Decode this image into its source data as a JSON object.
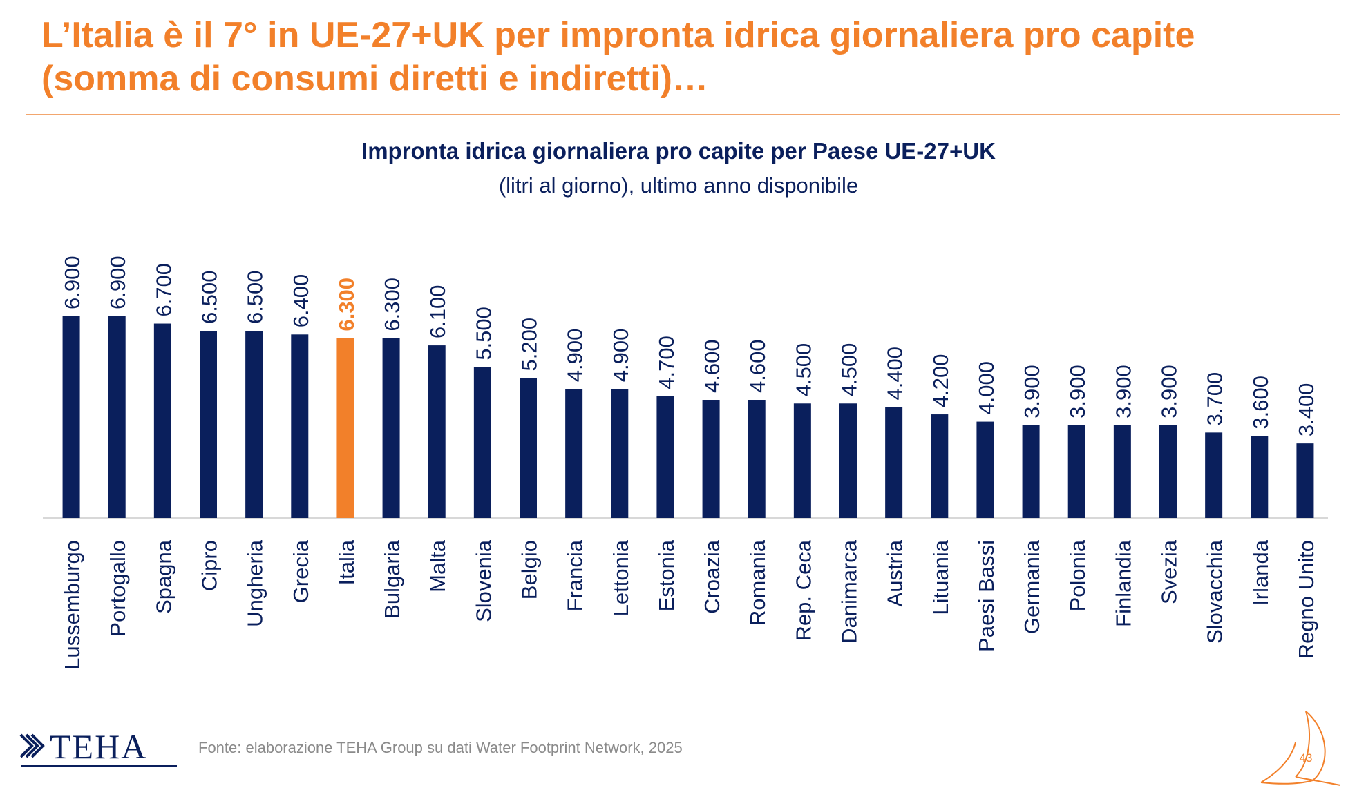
{
  "slide": {
    "title": "L’Italia è il 7° in UE-27+UK per impronta idrica giornaliera pro capite (somma di consumi diretti e indiretti)…",
    "page_number": "43"
  },
  "source": "Fonte: elaborazione TEHA Group su dati Water Footprint Network, 2025",
  "logo": {
    "text": "TEHA",
    "color": "#0A1F5C"
  },
  "colors": {
    "accent": "#F2802A",
    "bar": "#0A1F5C",
    "highlight": "#F2802A"
  },
  "chart_data": {
    "type": "bar",
    "title": "Impronta idrica giornaliera pro capite per Paese UE-27+UK",
    "subtitle": "(litri al giorno), ultimo anno disponibile",
    "categories": [
      "Lussemburgo",
      "Portogallo",
      "Spagna",
      "Cipro",
      "Ungheria",
      "Grecia",
      "Italia",
      "Bulgaria",
      "Malta",
      "Slovenia",
      "Belgio",
      "Francia",
      "Lettonia",
      "Estonia",
      "Croazia",
      "Romania",
      "Rep. Ceca",
      "Danimarca",
      "Austria",
      "Lituania",
      "Paesi Bassi",
      "Germania",
      "Polonia",
      "Finlandia",
      "Svezia",
      "Slovacchia",
      "Irlanda",
      "Regno Unito"
    ],
    "values": [
      6900,
      6900,
      6700,
      6500,
      6500,
      6400,
      6300,
      6300,
      6100,
      5500,
      5200,
      4900,
      4900,
      4700,
      4600,
      4600,
      4500,
      4500,
      4400,
      4200,
      4000,
      3900,
      3900,
      3900,
      3900,
      3700,
      3600,
      3400
    ],
    "value_labels": [
      "6.900",
      "6.900",
      "6.700",
      "6.500",
      "6.500",
      "6.400",
      "6.300",
      "6.300",
      "6.100",
      "5.500",
      "5.200",
      "4.900",
      "4.900",
      "4.700",
      "4.600",
      "4.600",
      "4.500",
      "4.500",
      "4.400",
      "4.200",
      "4.000",
      "3.900",
      "3.900",
      "3.900",
      "3.900",
      "3.700",
      "3.600",
      "3.400"
    ],
    "highlight_category": "Italia",
    "label_orientation": "vertical",
    "ylim": [
      0,
      6900
    ],
    "grid": false,
    "legend": "none",
    "xlabel": "",
    "ylabel": ""
  }
}
